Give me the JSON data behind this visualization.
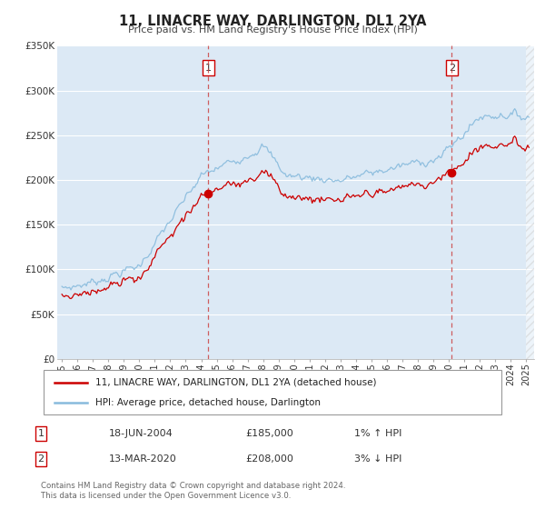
{
  "title": "11, LINACRE WAY, DARLINGTON, DL1 2YA",
  "subtitle": "Price paid vs. HM Land Registry's House Price Index (HPI)",
  "ylim": [
    0,
    350000
  ],
  "yticks": [
    0,
    50000,
    100000,
    150000,
    200000,
    250000,
    300000,
    350000
  ],
  "ytick_labels": [
    "£0",
    "£50K",
    "£100K",
    "£150K",
    "£200K",
    "£250K",
    "£300K",
    "£350K"
  ],
  "xlim_start": 1994.7,
  "xlim_end": 2025.5,
  "bg_color": "#dce9f5",
  "grid_color": "#ffffff",
  "line_color_red": "#cc0000",
  "line_color_blue": "#88bbdd",
  "marker_color": "#cc0000",
  "sale1_date": 2004.46,
  "sale1_price": 185000,
  "sale1_label": "1",
  "sale2_date": 2020.19,
  "sale2_price": 208000,
  "sale2_label": "2",
  "sale1_text": "18-JUN-2004",
  "sale1_amount": "£185,000",
  "sale1_hpi": "1% ↑ HPI",
  "sale2_text": "13-MAR-2020",
  "sale2_amount": "£208,000",
  "sale2_hpi": "3% ↓ HPI",
  "legend_label1": "11, LINACRE WAY, DARLINGTON, DL1 2YA (detached house)",
  "legend_label2": "HPI: Average price, detached house, Darlington",
  "footer1": "Contains HM Land Registry data © Crown copyright and database right 2024.",
  "footer2": "This data is licensed under the Open Government Licence v3.0."
}
